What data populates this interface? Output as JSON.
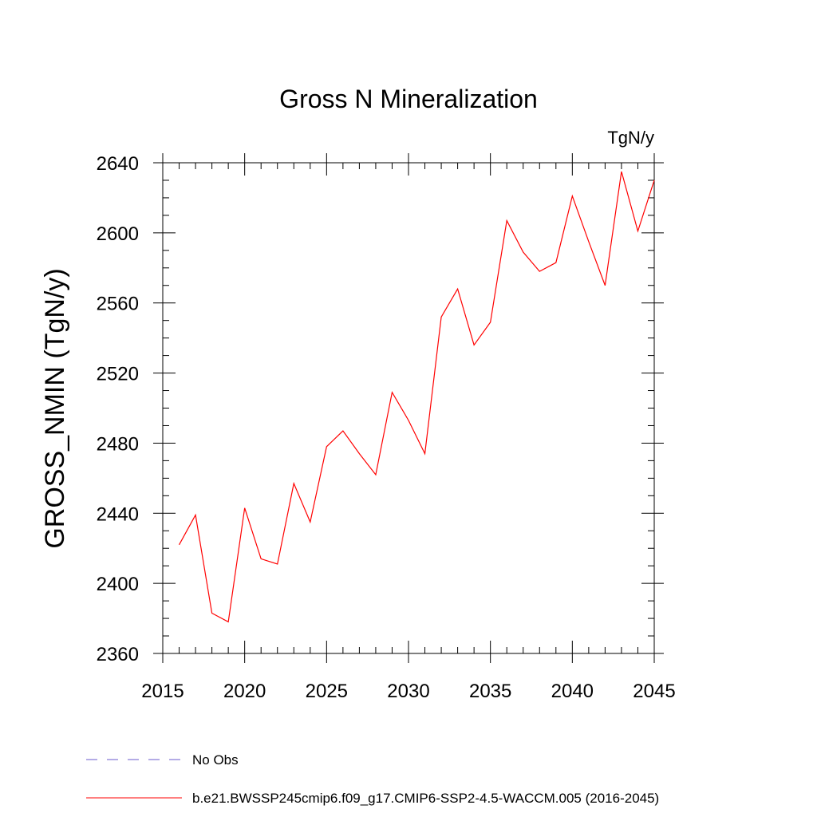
{
  "chart_data": {
    "type": "line",
    "title": "Gross N Mineralization",
    "units_label": "TgN/y",
    "xlabel": "",
    "ylabel": "GROSS_NMIN  (TgN/y)",
    "xlim": [
      2015,
      2045
    ],
    "ylim": [
      2360,
      2640
    ],
    "x_ticks": [
      2015,
      2020,
      2025,
      2030,
      2035,
      2040,
      2045
    ],
    "y_ticks": [
      2360,
      2400,
      2440,
      2480,
      2520,
      2560,
      2600,
      2640
    ],
    "grid": false,
    "legend_position": "bottom",
    "x": [
      2016,
      2017,
      2018,
      2019,
      2020,
      2021,
      2022,
      2023,
      2024,
      2025,
      2026,
      2027,
      2028,
      2029,
      2030,
      2031,
      2032,
      2033,
      2034,
      2035,
      2036,
      2037,
      2038,
      2039,
      2040,
      2041,
      2042,
      2043,
      2044,
      2045
    ],
    "series": [
      {
        "name": "b.e21.BWSSP245cmip6.f09_g17.CMIP6-SSP2-4.5-WACCM.005 (2016-2045)",
        "color": "#ff0000",
        "style": "solid",
        "values": [
          2422,
          2439,
          2383,
          2378,
          2443,
          2414,
          2411,
          2457,
          2435,
          2478,
          2487,
          2474,
          2462,
          2509,
          2493,
          2474,
          2552,
          2568,
          2536,
          2549,
          2607,
          2589,
          2578,
          2583,
          2621,
          2595,
          2570,
          2635,
          2601,
          2630
        ]
      }
    ],
    "legend": [
      {
        "label": "No Obs",
        "color": "#6a5acd",
        "style": "dashed"
      },
      {
        "label": "b.e21.BWSSP245cmip6.f09_g17.CMIP6-SSP2-4.5-WACCM.005 (2016-2045)",
        "color": "#ff0000",
        "style": "solid"
      }
    ]
  }
}
